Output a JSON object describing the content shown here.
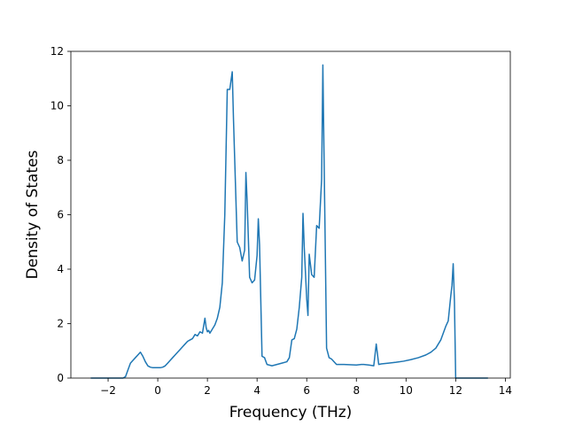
{
  "chart_data": {
    "type": "line",
    "xlabel": "Frequency (THz)",
    "ylabel": "Density of States",
    "xlim": [
      -3.5,
      14.2
    ],
    "ylim": [
      0,
      12
    ],
    "xticks": [
      -2,
      0,
      2,
      4,
      6,
      8,
      10,
      12,
      14
    ],
    "xtick_labels": [
      "−2",
      "0",
      "2",
      "4",
      "6",
      "8",
      "10",
      "12",
      "14"
    ],
    "yticks": [
      0,
      2,
      4,
      6,
      8,
      10,
      12
    ],
    "ytick_labels": [
      "0",
      "2",
      "4",
      "6",
      "8",
      "10",
      "12"
    ],
    "grid": false,
    "line_color": "#1f77b4",
    "series": [
      {
        "x": [
          -2.7,
          -1.4,
          -1.3,
          -1.2,
          -1.1,
          -1.0,
          -0.9,
          -0.8,
          -0.7,
          -0.6,
          -0.5,
          -0.4,
          -0.3,
          -0.2,
          -0.1,
          0.0,
          0.1,
          0.2,
          0.3,
          0.4,
          0.5,
          0.6,
          0.7,
          0.8,
          0.9,
          1.0,
          1.1,
          1.2,
          1.3,
          1.4,
          1.5,
          1.6,
          1.7,
          1.8,
          1.9,
          1.95,
          2.0,
          2.05,
          2.1,
          2.2,
          2.3,
          2.4,
          2.5,
          2.6,
          2.7,
          2.8,
          2.9,
          3.0,
          3.05,
          3.1,
          3.2,
          3.3,
          3.4,
          3.5,
          3.55,
          3.6,
          3.7,
          3.8,
          3.9,
          4.0,
          4.05,
          4.1,
          4.2,
          4.3,
          4.4,
          4.6,
          4.8,
          5.0,
          5.2,
          5.3,
          5.4,
          5.5,
          5.6,
          5.7,
          5.8,
          5.85,
          5.9,
          6.0,
          6.05,
          6.1,
          6.2,
          6.3,
          6.4,
          6.5,
          6.6,
          6.65,
          6.7,
          6.8,
          6.9,
          7.0,
          7.2,
          7.5,
          8.0,
          8.2,
          8.3,
          8.5,
          8.7,
          8.8,
          8.9,
          9.0,
          9.3,
          9.6,
          9.9,
          10.2,
          10.5,
          10.8,
          11.0,
          11.2,
          11.4,
          11.6,
          11.7,
          11.8,
          11.85,
          11.9,
          11.95,
          12.0,
          12.3,
          13.3
        ],
        "y": [
          0,
          0,
          0.05,
          0.3,
          0.55,
          0.65,
          0.75,
          0.85,
          0.95,
          0.8,
          0.6,
          0.45,
          0.4,
          0.38,
          0.38,
          0.38,
          0.38,
          0.4,
          0.45,
          0.55,
          0.65,
          0.75,
          0.85,
          0.95,
          1.05,
          1.15,
          1.25,
          1.35,
          1.4,
          1.45,
          1.6,
          1.55,
          1.7,
          1.65,
          2.2,
          1.85,
          1.7,
          1.75,
          1.65,
          1.8,
          1.95,
          2.2,
          2.6,
          3.5,
          6.0,
          10.6,
          10.6,
          11.25,
          9.5,
          8.0,
          5.0,
          4.8,
          4.3,
          4.7,
          7.55,
          6.5,
          3.7,
          3.5,
          3.6,
          4.5,
          5.85,
          4.9,
          0.8,
          0.75,
          0.5,
          0.45,
          0.5,
          0.55,
          0.6,
          0.75,
          1.4,
          1.45,
          1.8,
          2.6,
          3.7,
          6.05,
          4.8,
          2.9,
          2.3,
          4.55,
          3.8,
          3.7,
          5.6,
          5.5,
          7.3,
          11.5,
          8.0,
          1.1,
          0.75,
          0.7,
          0.5,
          0.5,
          0.48,
          0.5,
          0.5,
          0.48,
          0.45,
          1.25,
          0.5,
          0.52,
          0.55,
          0.58,
          0.62,
          0.68,
          0.75,
          0.85,
          0.95,
          1.1,
          1.4,
          1.9,
          2.1,
          3.0,
          3.4,
          4.2,
          2.8,
          0,
          0,
          0
        ]
      }
    ]
  }
}
